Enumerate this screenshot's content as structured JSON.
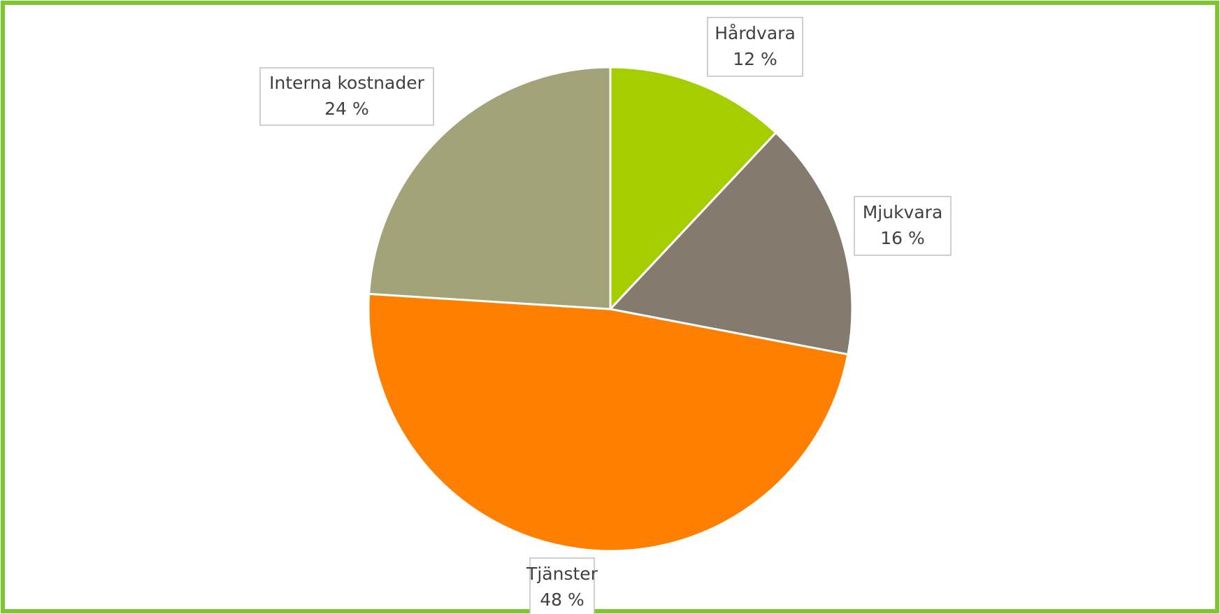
{
  "chart_data": {
    "type": "pie",
    "categories": [
      "Hårdvara",
      "Mjukvara",
      "Tjänster",
      "Interna kostnader"
    ],
    "values": [
      12,
      16,
      48,
      24
    ],
    "value_labels": [
      "12 %",
      "16 %",
      "48 %",
      "24 %"
    ],
    "colors": [
      "#a5cd00",
      "#857a6e",
      "#ff7f00",
      "#a2a378"
    ]
  }
}
